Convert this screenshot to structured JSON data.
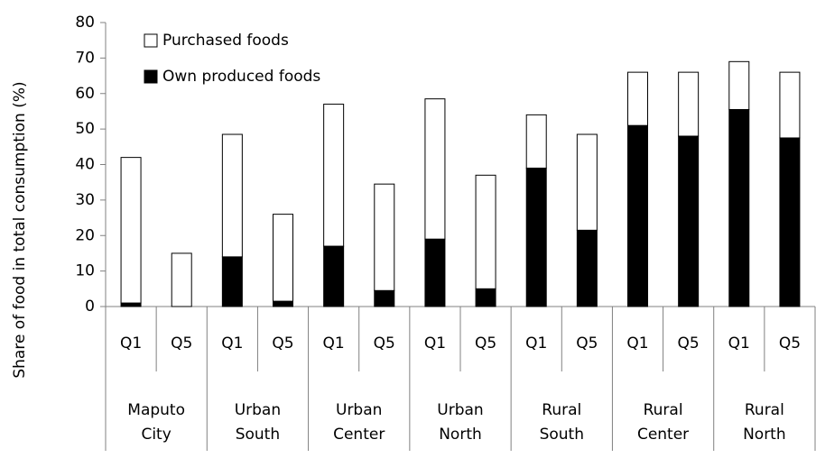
{
  "chart_data": {
    "type": "stacked_bar",
    "y_label": "Share of food in total consumption (%)",
    "categories": [
      "Q1",
      "Q5",
      "Q1",
      "Q5",
      "Q1",
      "Q5",
      "Q1",
      "Q5",
      "Q1",
      "Q5",
      "Q1",
      "Q5",
      "Q1",
      "Q5"
    ],
    "groups": [
      [
        "Maputo",
        "City"
      ],
      [
        "Urban",
        "South"
      ],
      [
        "Urban",
        "Center"
      ],
      [
        "Urban",
        "North"
      ],
      [
        "Rural",
        "South"
      ],
      [
        "Rural",
        "Center"
      ],
      [
        "Rural",
        "North"
      ]
    ],
    "series": [
      {
        "name": "Own produced foods",
        "color": "#000000",
        "values": [
          1,
          0,
          14,
          1.5,
          17,
          4.5,
          19,
          5,
          39,
          21.5,
          51,
          48,
          55.5,
          47.5
        ]
      },
      {
        "name": "Purchased foods",
        "color": "#ffffff",
        "values": [
          41,
          15,
          34.5,
          24.5,
          40,
          30,
          39.5,
          32,
          15,
          27,
          15,
          18,
          13.5,
          18.5
        ]
      }
    ],
    "ylim": [
      0,
      80
    ],
    "yticks": [
      0,
      10,
      20,
      30,
      40,
      50,
      60,
      70,
      80
    ],
    "legend": "upper left"
  }
}
